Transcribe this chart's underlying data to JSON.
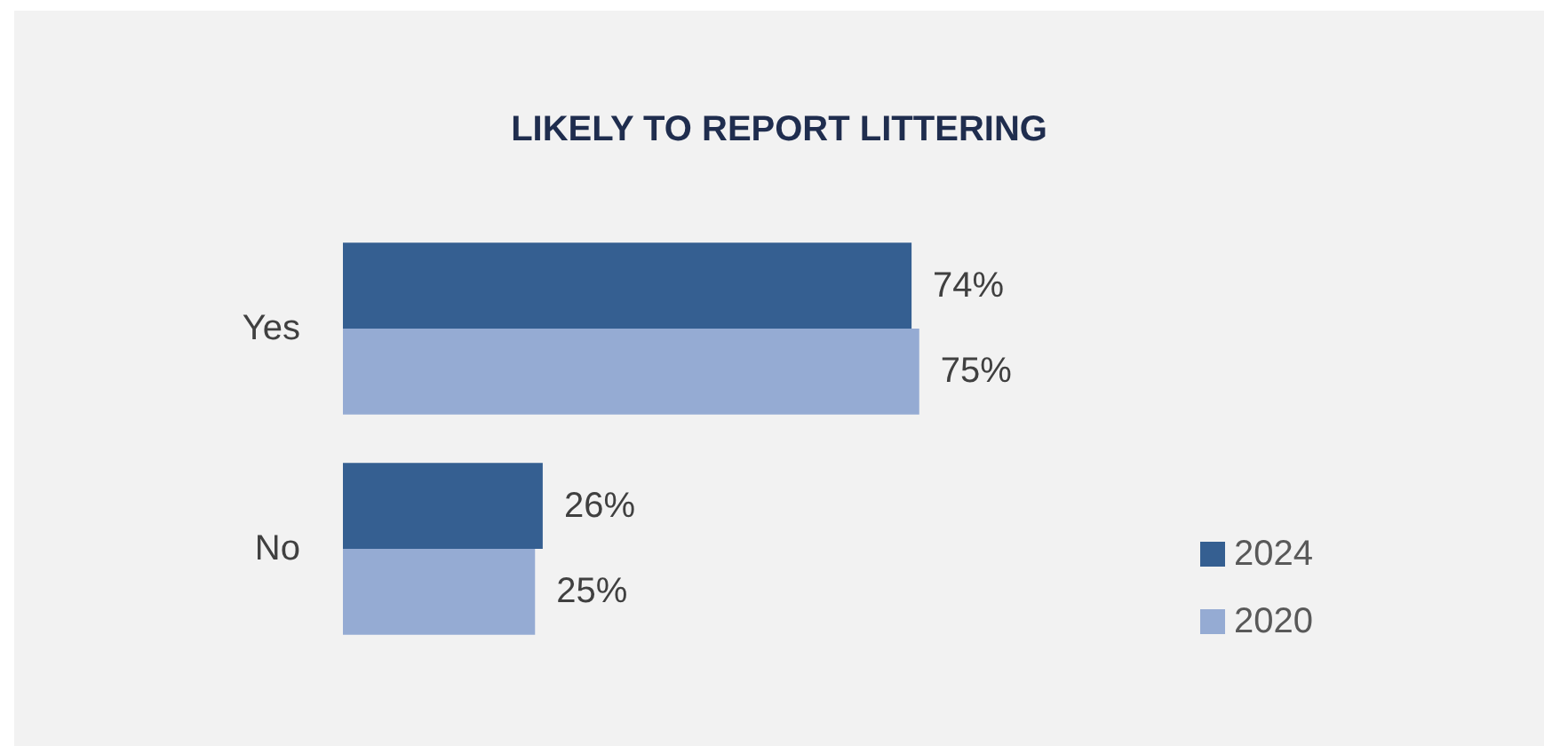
{
  "chart_data": {
    "type": "bar",
    "orientation": "horizontal",
    "title": "LIKELY TO REPORT LITTERING",
    "categories": [
      "Yes",
      "No"
    ],
    "series": [
      {
        "name": "2024",
        "color": "#355f91",
        "values": [
          74,
          26
        ],
        "value_labels": [
          "74%",
          "26%"
        ]
      },
      {
        "name": "2020",
        "color": "#95abd3",
        "values": [
          75,
          25
        ],
        "value_labels": [
          "75%",
          "25%"
        ]
      }
    ],
    "legend": "bottom right"
  }
}
